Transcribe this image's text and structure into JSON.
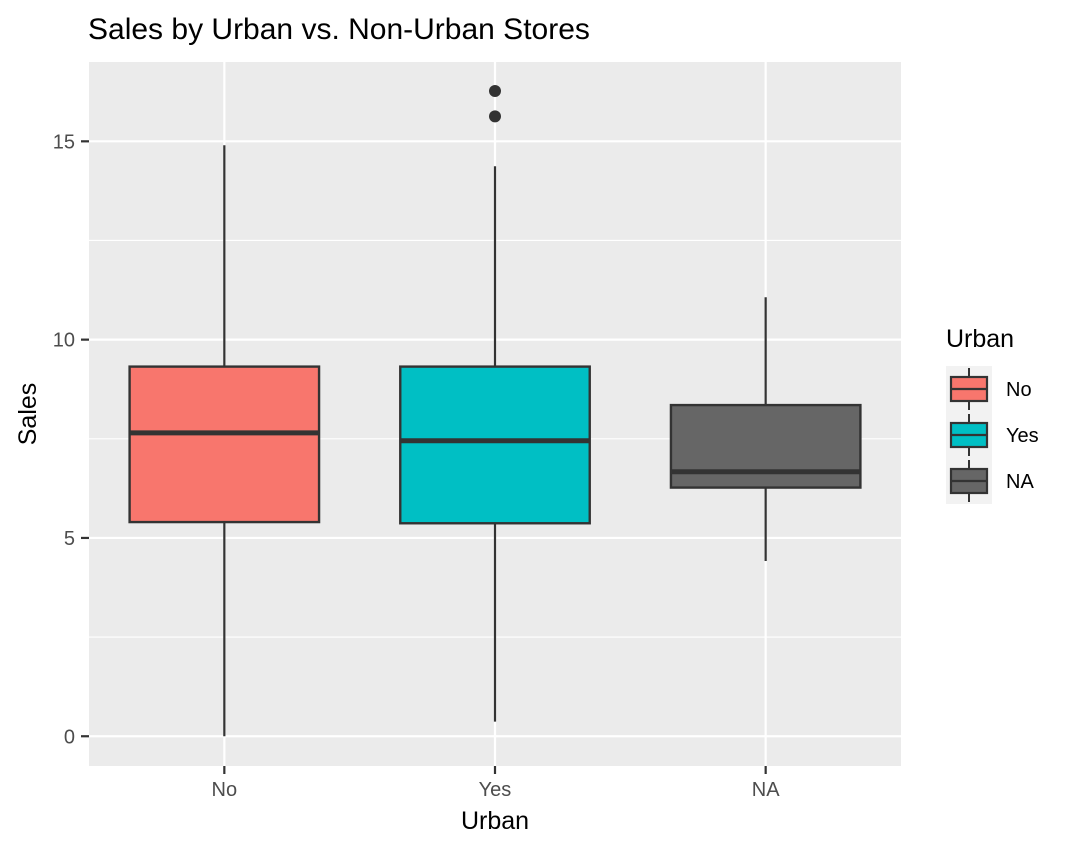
{
  "chart_data": {
    "type": "box",
    "title": "Sales by Urban vs. Non-Urban Stores",
    "xlabel": "Urban",
    "ylabel": "Sales",
    "ylim": [
      -0.75,
      17
    ],
    "yticks": [
      0,
      5,
      10,
      15
    ],
    "categories": [
      "No",
      "Yes",
      "NA"
    ],
    "boxes": [
      {
        "category": "No",
        "whisker_low": 0.0,
        "q1": 5.4,
        "median": 7.65,
        "q3": 9.32,
        "whisker_high": 14.9,
        "outliers": [],
        "fill": "#F8766D"
      },
      {
        "category": "Yes",
        "whisker_low": 0.37,
        "q1": 5.37,
        "median": 7.45,
        "q3": 9.32,
        "whisker_high": 14.37,
        "outliers": [
          15.63,
          16.27
        ],
        "fill": "#00BFC4"
      },
      {
        "category": "NA",
        "whisker_low": 4.42,
        "q1": 6.27,
        "median": 6.67,
        "q3": 8.35,
        "whisker_high": 11.07,
        "outliers": [],
        "fill": "#666666"
      }
    ],
    "grid": true,
    "panel_background": "#EBEBEB",
    "gridline_color": "#FFFFFF",
    "outline_color": "#333333",
    "legend": {
      "title": "Urban",
      "position": "right",
      "entries": [
        {
          "label": "No",
          "fill": "#F8766D"
        },
        {
          "label": "Yes",
          "fill": "#00BFC4"
        },
        {
          "label": "NA",
          "fill": "#666666"
        }
      ]
    }
  }
}
